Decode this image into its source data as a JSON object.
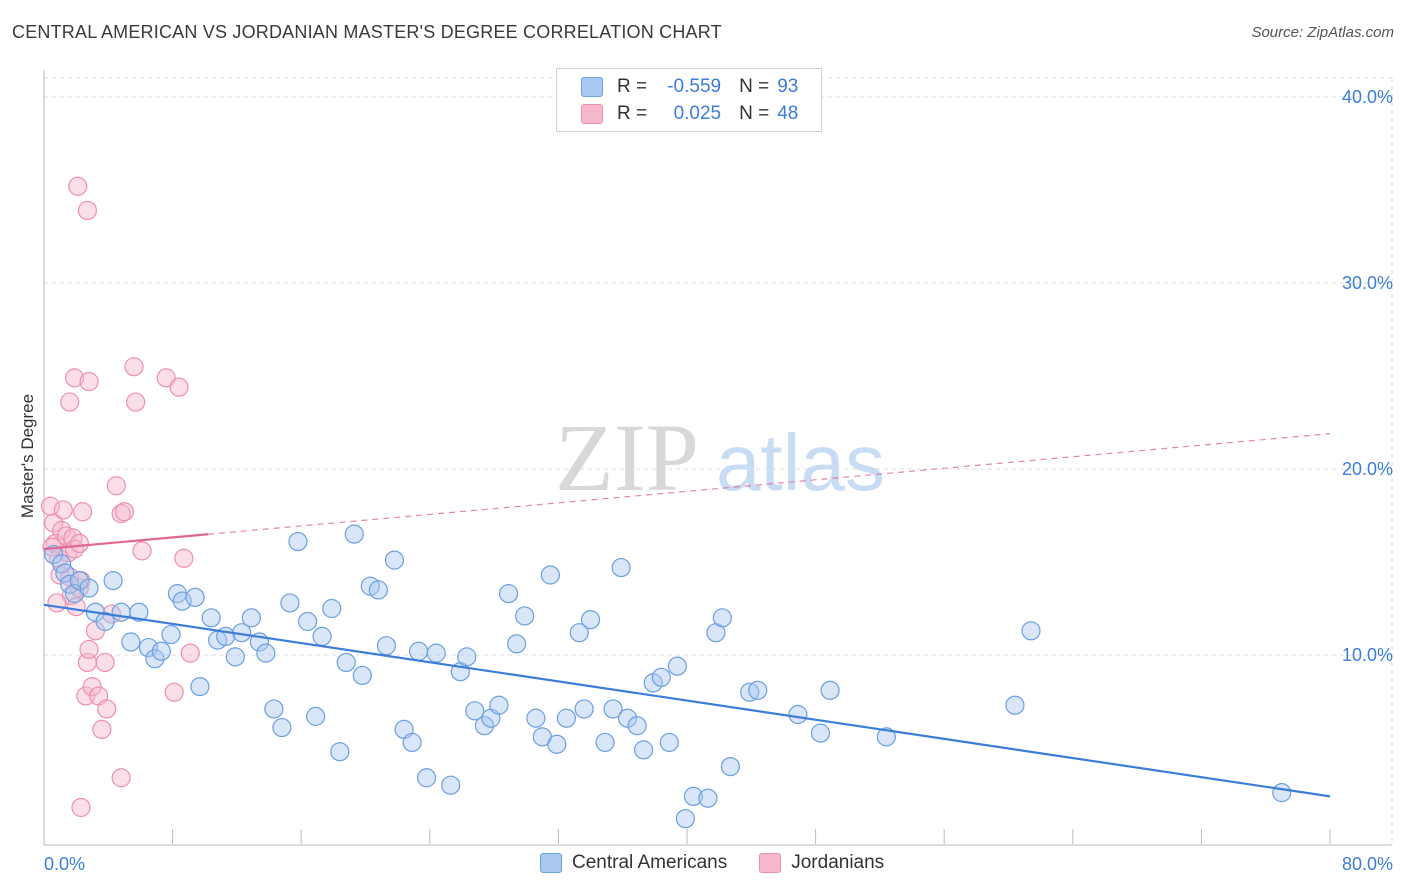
{
  "title": "CENTRAL AMERICAN VS JORDANIAN MASTER'S DEGREE CORRELATION CHART",
  "source": "Source: ZipAtlas.com",
  "watermark": {
    "zip": "ZIP",
    "atlas": "atlas"
  },
  "colors": {
    "blue": "#3b7dd8",
    "blue_fill": "#a9c8f0",
    "blue_stroke": "#6a9fe0",
    "pink": "#e06890",
    "pink_fill": "#f6b8cc",
    "pink_stroke": "#ee8fae",
    "grid": "#dddddd"
  },
  "legend": {
    "rows": [
      {
        "r_label": "R =",
        "r_value": "-0.559",
        "n_label": "N =",
        "n_value": "93",
        "color": "#a9c8f0"
      },
      {
        "r_label": "R =",
        "r_value": "0.025",
        "n_label": "N =",
        "n_value": "48",
        "color": "#f6b8cc"
      }
    ]
  },
  "bottom_legend": [
    {
      "label": "Central Americans",
      "color": "#a9c8f0"
    },
    {
      "label": "Jordanians",
      "color": "#f6b8cc"
    }
  ],
  "chart_data": {
    "type": "scatter",
    "title": "CENTRAL AMERICAN VS JORDANIAN MASTER'S DEGREE CORRELATION CHART",
    "ylabel": "Master's Degree",
    "xlim": [
      0,
      80
    ],
    "ylim": [
      0,
      42
    ],
    "x_tick_labels": [
      "0.0%",
      "80.0%"
    ],
    "y_ticks": [
      10,
      20,
      30,
      40
    ],
    "y_tick_labels": [
      "10.0%",
      "20.0%",
      "30.0%",
      "40.0%"
    ],
    "grid": true,
    "series": [
      {
        "name": "Central Americans",
        "trend": {
          "x0": 0,
          "y0": 12.7,
          "x1": 80,
          "y1": 2.4,
          "dashed_to": 80
        },
        "points": [
          [
            0.6,
            15.4
          ],
          [
            1.1,
            14.9
          ],
          [
            1.3,
            14.4
          ],
          [
            1.6,
            13.8
          ],
          [
            1.9,
            13.3
          ],
          [
            2.2,
            14.0
          ],
          [
            2.8,
            13.6
          ],
          [
            3.2,
            12.3
          ],
          [
            3.8,
            11.8
          ],
          [
            4.3,
            14.0
          ],
          [
            4.8,
            12.3
          ],
          [
            5.4,
            10.7
          ],
          [
            5.9,
            12.3
          ],
          [
            6.5,
            10.4
          ],
          [
            6.9,
            9.8
          ],
          [
            7.3,
            10.2
          ],
          [
            7.9,
            11.1
          ],
          [
            8.3,
            13.3
          ],
          [
            8.6,
            12.9
          ],
          [
            9.4,
            13.1
          ],
          [
            9.7,
            8.3
          ],
          [
            10.4,
            12.0
          ],
          [
            10.8,
            10.8
          ],
          [
            11.3,
            11.0
          ],
          [
            11.9,
            9.9
          ],
          [
            12.3,
            11.2
          ],
          [
            12.9,
            12.0
          ],
          [
            13.4,
            10.7
          ],
          [
            13.8,
            10.1
          ],
          [
            14.3,
            7.1
          ],
          [
            14.8,
            6.1
          ],
          [
            15.3,
            12.8
          ],
          [
            15.8,
            16.1
          ],
          [
            16.4,
            11.8
          ],
          [
            16.9,
            6.7
          ],
          [
            17.3,
            11.0
          ],
          [
            17.9,
            12.5
          ],
          [
            18.4,
            4.8
          ],
          [
            18.8,
            9.6
          ],
          [
            19.3,
            16.5
          ],
          [
            19.8,
            8.9
          ],
          [
            20.3,
            13.7
          ],
          [
            20.8,
            13.5
          ],
          [
            21.3,
            10.5
          ],
          [
            21.8,
            15.1
          ],
          [
            22.4,
            6.0
          ],
          [
            22.9,
            5.3
          ],
          [
            23.3,
            10.2
          ],
          [
            23.8,
            3.4
          ],
          [
            24.4,
            10.1
          ],
          [
            25.3,
            3.0
          ],
          [
            25.9,
            9.1
          ],
          [
            26.3,
            9.9
          ],
          [
            26.8,
            7.0
          ],
          [
            27.4,
            6.2
          ],
          [
            27.8,
            6.6
          ],
          [
            28.3,
            7.3
          ],
          [
            28.9,
            13.3
          ],
          [
            29.4,
            10.6
          ],
          [
            29.9,
            12.1
          ],
          [
            30.6,
            6.6
          ],
          [
            31.0,
            5.6
          ],
          [
            31.5,
            14.3
          ],
          [
            31.9,
            5.2
          ],
          [
            32.5,
            6.6
          ],
          [
            33.3,
            11.2
          ],
          [
            33.6,
            7.1
          ],
          [
            34.0,
            11.9
          ],
          [
            34.9,
            5.3
          ],
          [
            35.4,
            7.1
          ],
          [
            35.9,
            14.7
          ],
          [
            36.3,
            6.6
          ],
          [
            36.9,
            6.2
          ],
          [
            37.3,
            4.9
          ],
          [
            37.9,
            8.5
          ],
          [
            38.4,
            8.8
          ],
          [
            38.9,
            5.3
          ],
          [
            39.4,
            9.4
          ],
          [
            39.9,
            1.2
          ],
          [
            40.4,
            2.4
          ],
          [
            41.3,
            2.3
          ],
          [
            41.8,
            11.2
          ],
          [
            42.2,
            12.0
          ],
          [
            42.7,
            4.0
          ],
          [
            43.9,
            8.0
          ],
          [
            44.4,
            8.1
          ],
          [
            46.9,
            6.8
          ],
          [
            48.3,
            5.8
          ],
          [
            48.9,
            8.1
          ],
          [
            52.4,
            5.6
          ],
          [
            60.4,
            7.3
          ],
          [
            61.4,
            11.3
          ],
          [
            77.0,
            2.6
          ]
        ]
      },
      {
        "name": "Jordanians",
        "trend": {
          "x0": 0,
          "y0": 15.7,
          "x1": 80,
          "y1": 21.9,
          "solid_to": 10.2
        },
        "points": [
          [
            0.4,
            18.0
          ],
          [
            0.6,
            17.1
          ],
          [
            0.7,
            16.0
          ],
          [
            0.9,
            15.2
          ],
          [
            1.0,
            14.3
          ],
          [
            1.1,
            16.7
          ],
          [
            1.2,
            17.8
          ],
          [
            1.4,
            16.4
          ],
          [
            1.5,
            15.5
          ],
          [
            1.6,
            14.2
          ],
          [
            1.7,
            13.2
          ],
          [
            1.8,
            16.3
          ],
          [
            1.9,
            15.7
          ],
          [
            2.0,
            12.6
          ],
          [
            2.2,
            13.6
          ],
          [
            2.3,
            14.0
          ],
          [
            2.4,
            17.7
          ],
          [
            2.6,
            7.8
          ],
          [
            2.7,
            9.6
          ],
          [
            2.8,
            10.3
          ],
          [
            3.0,
            8.3
          ],
          [
            3.2,
            11.3
          ],
          [
            3.4,
            7.8
          ],
          [
            3.6,
            6.0
          ],
          [
            3.8,
            9.6
          ],
          [
            3.9,
            7.1
          ],
          [
            4.2,
            12.2
          ],
          [
            4.5,
            19.1
          ],
          [
            4.8,
            3.4
          ],
          [
            4.8,
            17.6
          ],
          [
            5.0,
            17.7
          ],
          [
            5.6,
            25.5
          ],
          [
            5.7,
            23.6
          ],
          [
            6.1,
            15.6
          ],
          [
            7.6,
            24.9
          ],
          [
            8.1,
            8.0
          ],
          [
            8.4,
            24.4
          ],
          [
            8.7,
            15.2
          ],
          [
            9.1,
            10.1
          ],
          [
            1.6,
            23.6
          ],
          [
            1.9,
            24.9
          ],
          [
            2.2,
            16.0
          ],
          [
            2.3,
            1.8
          ],
          [
            2.8,
            24.7
          ],
          [
            2.7,
            33.9
          ],
          [
            2.1,
            35.2
          ],
          [
            0.5,
            15.8
          ],
          [
            0.8,
            12.8
          ]
        ]
      }
    ]
  }
}
